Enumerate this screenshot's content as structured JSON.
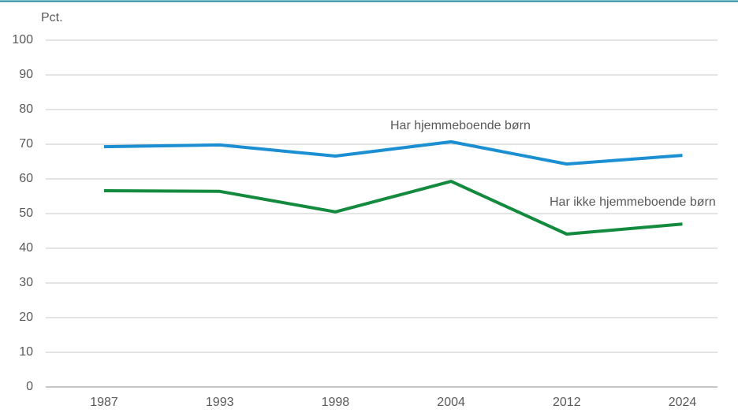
{
  "chart_data": {
    "type": "line",
    "y_label": "Pct.",
    "categories": [
      "1987",
      "1993",
      "1998",
      "2004",
      "2012",
      "2024"
    ],
    "series": [
      {
        "name": "Har hjemmeboende børn",
        "color": "#1b8fd2",
        "values": [
          69.3,
          69.8,
          66.6,
          70.7,
          64.3,
          66.8
        ]
      },
      {
        "name": "Har ikke hjemmeboende børn",
        "color": "#138a3e",
        "values": [
          56.6,
          56.4,
          50.5,
          59.3,
          44.1,
          47.0
        ]
      }
    ],
    "ylim": [
      0,
      100
    ],
    "yticks": [
      0,
      10,
      20,
      30,
      40,
      50,
      60,
      70,
      80,
      90,
      100
    ],
    "grid": true
  }
}
